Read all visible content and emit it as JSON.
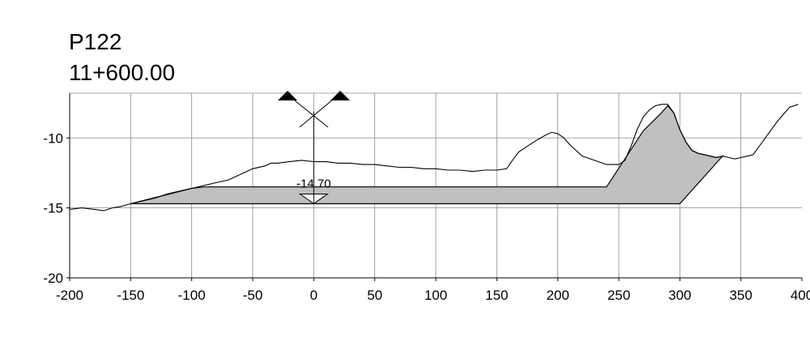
{
  "profile": {
    "name": "P122",
    "station": "11+600.00"
  },
  "chart_data": {
    "type": "line",
    "title": "P122",
    "subtitle": "11+600.00",
    "xlabel": "",
    "ylabel": "",
    "xlim": [
      -200,
      400
    ],
    "ylim": [
      -20,
      -6.8
    ],
    "xticks": [
      -200,
      -150,
      -100,
      -50,
      0,
      50,
      100,
      150,
      200,
      250,
      300,
      350,
      400
    ],
    "xtick_labels": [
      "-200",
      "-150",
      "-100",
      "-50",
      "0",
      "50",
      "100",
      "150",
      "200",
      "250",
      "300",
      "350",
      "400"
    ],
    "yticks": [
      -20,
      -15,
      -10
    ],
    "ytick_labels": [
      "-20",
      "-15",
      "-10"
    ],
    "grid": true,
    "series": [
      {
        "type": "line",
        "color": "#000000",
        "x": [
          -200,
          -190,
          -180,
          -172,
          -165,
          -158,
          -150,
          -140,
          -130,
          -120,
          -110,
          -100,
          -90,
          -80,
          -70,
          -60,
          -50,
          -40,
          -35,
          -30,
          -20,
          -10,
          0,
          10,
          20,
          30,
          40,
          50,
          60,
          70,
          80,
          90,
          100,
          110,
          120,
          130,
          140,
          150,
          158,
          162,
          168,
          175,
          182,
          190,
          195,
          200,
          205,
          210,
          220,
          230,
          240,
          250,
          255,
          260,
          265,
          270,
          275,
          280,
          285,
          290,
          295,
          300,
          305,
          310,
          315,
          320,
          325,
          330,
          335,
          340,
          345,
          350,
          355,
          360,
          365,
          370,
          375,
          380,
          385,
          390,
          397
        ],
        "y": [
          -15.1,
          -15.0,
          -15.1,
          -15.2,
          -15.0,
          -14.9,
          -14.7,
          -14.5,
          -14.3,
          -14.0,
          -13.8,
          -13.6,
          -13.4,
          -13.2,
          -13.0,
          -12.6,
          -12.2,
          -12.0,
          -11.8,
          -11.8,
          -11.7,
          -11.6,
          -11.7,
          -11.7,
          -11.8,
          -11.8,
          -11.9,
          -11.9,
          -12.0,
          -12.1,
          -12.1,
          -12.2,
          -12.2,
          -12.3,
          -12.3,
          -12.4,
          -12.3,
          -12.3,
          -12.2,
          -11.7,
          -11.0,
          -10.6,
          -10.2,
          -9.8,
          -9.6,
          -9.7,
          -10.0,
          -10.5,
          -11.3,
          -11.6,
          -11.9,
          -11.9,
          -11.6,
          -10.6,
          -9.4,
          -8.5,
          -8.0,
          -7.7,
          -7.6,
          -7.6,
          -8.2,
          -9.4,
          -10.3,
          -10.9,
          -11.1,
          -11.2,
          -11.3,
          -11.4,
          -11.3,
          -11.4,
          -11.5,
          -11.4,
          -11.3,
          -11.2,
          -10.6,
          -10.0,
          -9.4,
          -8.8,
          -8.3,
          -7.8,
          -7.6
        ]
      },
      {
        "type": "area",
        "color": "#c0c0c0",
        "x": [
          -150,
          -100,
          -90,
          -80,
          240,
          270,
          285,
          290,
          295,
          300,
          305,
          310,
          315,
          320,
          325,
          330,
          335,
          300,
          -150
        ],
        "y": [
          -14.7,
          -13.6,
          -13.5,
          -13.5,
          -13.5,
          -9.5,
          -8.2,
          -7.7,
          -8.2,
          -9.4,
          -10.3,
          -10.9,
          -11.1,
          -11.2,
          -11.3,
          -11.4,
          -11.3,
          -14.7,
          -14.7
        ]
      }
    ],
    "annotations": [
      {
        "type": "water_level",
        "x": 0,
        "y": -14.7,
        "label": "-14.70"
      },
      {
        "type": "centerline",
        "x": 0
      }
    ]
  }
}
